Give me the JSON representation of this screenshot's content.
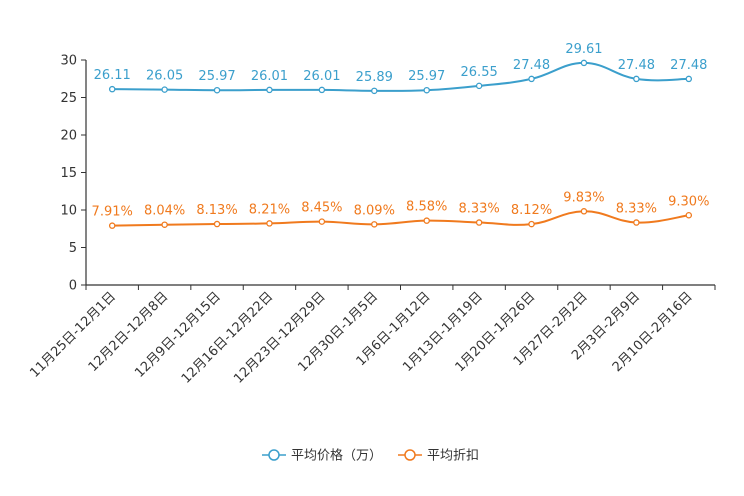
{
  "chart_data": {
    "type": "line",
    "categories": [
      "11月25日-12月1日",
      "12月2日-12月8日",
      "12月9日-12月15日",
      "12月16日-12月22日",
      "12月23日-12月29日",
      "12月30日-1月5日",
      "1月6日-1月12日",
      "1月13日-1月19日",
      "1月20日-1月26日",
      "1月27日-2月2日",
      "2月3日-2月9日",
      "2月10日-2月16日"
    ],
    "yticks": [
      "0",
      "5",
      "10",
      "15",
      "20",
      "25",
      "30"
    ],
    "ylim": [
      0,
      30
    ],
    "series": [
      {
        "name": "平均价格（万）",
        "color": "#3b9fcc",
        "values": [
          26.11,
          26.05,
          25.97,
          26.01,
          26.01,
          25.89,
          25.97,
          26.55,
          27.48,
          29.61,
          27.48,
          27.48
        ],
        "labels": [
          "26.11",
          "26.05",
          "25.97",
          "26.01",
          "26.01",
          "25.89",
          "25.97",
          "26.55",
          "27.48",
          "29.61",
          "27.48",
          "27.48"
        ]
      },
      {
        "name": "平均折扣",
        "color": "#f07a1e",
        "values": [
          7.91,
          8.04,
          8.13,
          8.21,
          8.45,
          8.09,
          8.58,
          8.33,
          8.12,
          9.83,
          8.33,
          9.3
        ],
        "labels": [
          "7.91%",
          "8.04%",
          "8.13%",
          "8.21%",
          "8.45%",
          "8.09%",
          "8.58%",
          "8.33%",
          "8.12%",
          "9.83%",
          "8.33%",
          "9.30%"
        ]
      }
    ],
    "legend_position": "bottom-center"
  }
}
